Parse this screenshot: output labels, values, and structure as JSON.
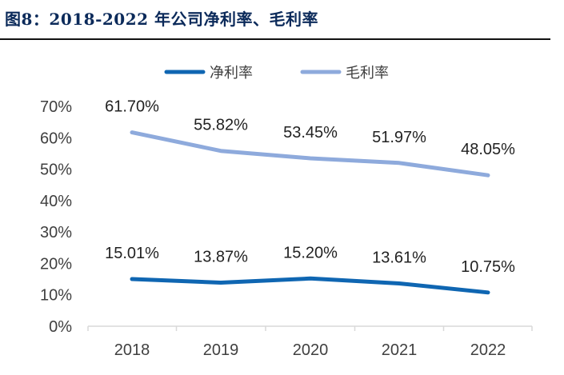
{
  "header": {
    "title": "图8：2018-2022 年公司净利率、毛利率"
  },
  "chart_data": {
    "type": "line",
    "title": "图8：2018-2022 年公司净利率、毛利率",
    "xlabel": "",
    "ylabel": "",
    "categories": [
      "2018",
      "2019",
      "2020",
      "2021",
      "2022"
    ],
    "ylim": [
      0,
      70
    ],
    "yticks": [
      0,
      10,
      20,
      30,
      40,
      50,
      60,
      70
    ],
    "ytick_labels": [
      "0%",
      "10%",
      "20%",
      "30%",
      "40%",
      "50%",
      "60%",
      "70%"
    ],
    "grid": false,
    "legend_position": "top",
    "series": [
      {
        "name": "净利率",
        "color": "#0f66b2",
        "values": [
          15.01,
          13.87,
          15.2,
          13.61,
          10.75
        ],
        "labels": [
          "15.01%",
          "13.87%",
          "15.20%",
          "13.61%",
          "10.75%"
        ]
      },
      {
        "name": "毛利率",
        "color": "#8eaadc",
        "values": [
          61.7,
          55.82,
          53.45,
          51.97,
          48.05
        ],
        "labels": [
          "61.70%",
          "55.82%",
          "53.45%",
          "51.97%",
          "48.05%"
        ]
      }
    ]
  }
}
